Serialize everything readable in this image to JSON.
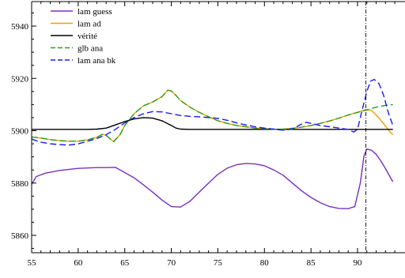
{
  "chart_data": {
    "type": "line",
    "title": "",
    "xlabel": "",
    "ylabel": "",
    "xlim": [
      55,
      92
    ],
    "ylim": [
      5850,
      5950
    ],
    "x_ticks": [
      55,
      60,
      65,
      70,
      75,
      80,
      85,
      90
    ],
    "x_tick_labels": [
      "55",
      "60",
      "65",
      "70",
      "75",
      "80",
      "85",
      "90"
    ],
    "y_ticks": [
      5860,
      5880,
      5900,
      5920,
      5940
    ],
    "y_tick_labels": [
      "5860",
      "5880",
      "5900",
      "5920",
      "5940"
    ],
    "grid": false,
    "legend_position": "top-left",
    "vertical_marker": {
      "x": 90.9,
      "style": "dash-dot",
      "color": "#000000"
    },
    "series": [
      {
        "name": "lam guess",
        "color": "#7b2fbf",
        "style": "solid",
        "points": [
          [
            55.0,
            5879.5
          ],
          [
            55.5,
            5882.5
          ],
          [
            56.5,
            5883.8
          ],
          [
            58,
            5884.8
          ],
          [
            60,
            5885.6
          ],
          [
            62,
            5885.9
          ],
          [
            63,
            5885.9
          ],
          [
            64,
            5886.0
          ],
          [
            65,
            5884.0
          ],
          [
            66,
            5882.0
          ],
          [
            67,
            5879.3
          ],
          [
            68,
            5876.5
          ],
          [
            69,
            5873.5
          ],
          [
            70,
            5871.0
          ],
          [
            71,
            5870.8
          ],
          [
            72,
            5873.0
          ],
          [
            73,
            5876.5
          ],
          [
            74,
            5880.0
          ],
          [
            75,
            5883.3
          ],
          [
            76,
            5885.7
          ],
          [
            77,
            5887.0
          ],
          [
            78,
            5887.5
          ],
          [
            79,
            5887.3
          ],
          [
            80,
            5886.6
          ],
          [
            81,
            5885.0
          ],
          [
            82,
            5883.0
          ],
          [
            83,
            5880.0
          ],
          [
            84,
            5877.0
          ],
          [
            85,
            5874.5
          ],
          [
            86,
            5872.5
          ],
          [
            87,
            5871.0
          ],
          [
            88,
            5870.3
          ],
          [
            89,
            5870.2
          ],
          [
            89.7,
            5871.0
          ],
          [
            90.3,
            5880.0
          ],
          [
            90.7,
            5890.5
          ],
          [
            91.0,
            5893.0
          ],
          [
            91.5,
            5892.5
          ],
          [
            92.0,
            5891.0
          ],
          [
            92.5,
            5888.5
          ],
          [
            93.0,
            5885.5
          ],
          [
            93.5,
            5882.3
          ],
          [
            93.8,
            5880.5
          ]
        ]
      },
      {
        "name": "lam ad",
        "color": "#f0a000",
        "style": "solid",
        "points": [
          [
            55.0,
            5897.6
          ],
          [
            56,
            5897.2
          ],
          [
            57,
            5896.6
          ],
          [
            58,
            5896.2
          ],
          [
            59,
            5896.0
          ],
          [
            60,
            5896.0
          ],
          [
            61,
            5896.5
          ],
          [
            62,
            5897.5
          ],
          [
            62.6,
            5898.6
          ],
          [
            63,
            5898.2
          ],
          [
            63.8,
            5895.8
          ],
          [
            64.5,
            5898.5
          ],
          [
            65,
            5902.0
          ],
          [
            66,
            5906.5
          ],
          [
            67,
            5909.5
          ],
          [
            68,
            5911.0
          ],
          [
            69,
            5913.0
          ],
          [
            69.6,
            5915.5
          ],
          [
            70,
            5915.2
          ],
          [
            70.5,
            5913.5
          ],
          [
            71,
            5911.5
          ],
          [
            72,
            5909.0
          ],
          [
            73,
            5907.0
          ],
          [
            74,
            5905.3
          ],
          [
            75,
            5903.8
          ],
          [
            76,
            5902.8
          ],
          [
            77,
            5902.0
          ],
          [
            78,
            5901.5
          ],
          [
            79,
            5901.0
          ],
          [
            80,
            5900.8
          ],
          [
            81,
            5900.5
          ],
          [
            82,
            5900.6
          ],
          [
            83,
            5900.9
          ],
          [
            84,
            5901.4
          ],
          [
            85,
            5902.0
          ],
          [
            86,
            5902.8
          ],
          [
            87,
            5903.7
          ],
          [
            88,
            5904.8
          ],
          [
            89,
            5906.0
          ],
          [
            90,
            5907.0
          ],
          [
            90.8,
            5908.0
          ],
          [
            91.5,
            5907.8
          ],
          [
            92,
            5906.0
          ],
          [
            92.5,
            5904.0
          ],
          [
            93,
            5901.8
          ],
          [
            93.5,
            5899.5
          ],
          [
            93.8,
            5898.5
          ]
        ]
      },
      {
        "name": "vérité",
        "color": "#000000",
        "style": "solid",
        "points": [
          [
            55.0,
            5900.5
          ],
          [
            60,
            5900.5
          ],
          [
            61,
            5900.5
          ],
          [
            62,
            5900.6
          ],
          [
            63,
            5901.0
          ],
          [
            64,
            5902.2
          ],
          [
            65,
            5903.5
          ],
          [
            66,
            5904.5
          ],
          [
            67,
            5905.0
          ],
          [
            68,
            5904.8
          ],
          [
            69,
            5903.8
          ],
          [
            70,
            5902.0
          ],
          [
            70.5,
            5901.0
          ],
          [
            71,
            5900.6
          ],
          [
            72,
            5900.5
          ],
          [
            75,
            5900.5
          ],
          [
            80,
            5900.5
          ],
          [
            85,
            5900.5
          ],
          [
            90,
            5900.5
          ],
          [
            93.8,
            5900.5
          ]
        ]
      },
      {
        "name": "glb ana",
        "color": "#22a022",
        "style": "dashed",
        "points": [
          [
            55.0,
            5897.6
          ],
          [
            56,
            5897.2
          ],
          [
            57,
            5896.6
          ],
          [
            58,
            5896.2
          ],
          [
            59,
            5896.0
          ],
          [
            60,
            5896.0
          ],
          [
            61,
            5896.5
          ],
          [
            62,
            5897.5
          ],
          [
            62.6,
            5898.6
          ],
          [
            63,
            5898.2
          ],
          [
            63.8,
            5895.8
          ],
          [
            64.5,
            5898.5
          ],
          [
            65,
            5902.0
          ],
          [
            66,
            5906.5
          ],
          [
            67,
            5909.5
          ],
          [
            68,
            5911.0
          ],
          [
            69,
            5913.0
          ],
          [
            69.6,
            5915.5
          ],
          [
            70,
            5915.2
          ],
          [
            70.5,
            5913.5
          ],
          [
            71,
            5911.5
          ],
          [
            72,
            5909.0
          ],
          [
            73,
            5907.0
          ],
          [
            74,
            5905.3
          ],
          [
            75,
            5903.8
          ],
          [
            76,
            5902.8
          ],
          [
            77,
            5902.0
          ],
          [
            78,
            5901.5
          ],
          [
            79,
            5901.0
          ],
          [
            80,
            5900.8
          ],
          [
            81,
            5900.5
          ],
          [
            82,
            5900.6
          ],
          [
            83,
            5900.9
          ],
          [
            84,
            5901.4
          ],
          [
            85,
            5902.0
          ],
          [
            86,
            5902.8
          ],
          [
            87,
            5903.7
          ],
          [
            88,
            5904.8
          ],
          [
            89,
            5906.0
          ],
          [
            90,
            5907.0
          ],
          [
            91,
            5908.0
          ],
          [
            92,
            5909.0
          ],
          [
            93,
            5909.7
          ],
          [
            93.8,
            5910.0
          ]
        ]
      },
      {
        "name": "lam ana bk",
        "color": "#1a1aee",
        "style": "dashed",
        "points": [
          [
            55.0,
            5896.8
          ],
          [
            56,
            5895.6
          ],
          [
            57,
            5895.0
          ],
          [
            58,
            5894.7
          ],
          [
            59,
            5894.5
          ],
          [
            60,
            5895.0
          ],
          [
            61,
            5896.0
          ],
          [
            62,
            5897.0
          ],
          [
            63,
            5898.5
          ],
          [
            64,
            5900.5
          ],
          [
            65,
            5903.0
          ],
          [
            66,
            5905.0
          ],
          [
            67,
            5906.5
          ],
          [
            68,
            5907.3
          ],
          [
            69,
            5907.2
          ],
          [
            70,
            5906.5
          ],
          [
            71,
            5905.8
          ],
          [
            72,
            5905.5
          ],
          [
            73,
            5905.3
          ],
          [
            74,
            5905.0
          ],
          [
            75,
            5904.7
          ],
          [
            76,
            5904.0
          ],
          [
            77,
            5903.0
          ],
          [
            78,
            5902.2
          ],
          [
            79,
            5901.5
          ],
          [
            80,
            5901.0
          ],
          [
            81,
            5900.6
          ],
          [
            82,
            5900.2
          ],
          [
            83,
            5900.6
          ],
          [
            83.8,
            5902.2
          ],
          [
            84.5,
            5903.2
          ],
          [
            85,
            5902.8
          ],
          [
            86,
            5902.0
          ],
          [
            87,
            5901.5
          ],
          [
            88,
            5901.0
          ],
          [
            89,
            5900.5
          ],
          [
            89.6,
            5899.5
          ],
          [
            90.0,
            5900.5
          ],
          [
            90.5,
            5908.0
          ],
          [
            91,
            5915.0
          ],
          [
            91.4,
            5919.0
          ],
          [
            91.8,
            5919.6
          ],
          [
            92.3,
            5918.0
          ],
          [
            92.8,
            5913.5
          ],
          [
            93.3,
            5907.0
          ],
          [
            93.8,
            5902.0
          ]
        ]
      }
    ]
  }
}
